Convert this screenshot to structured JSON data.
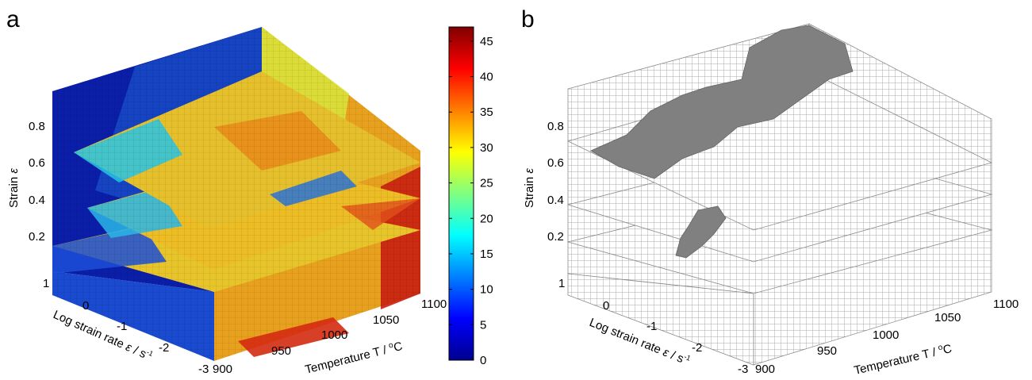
{
  "chart_data": [
    {
      "panel": "a",
      "type": "heatmap",
      "subtype": "3d-slice",
      "x_axis": {
        "label": "Temperature T / °C",
        "ticks": [
          "900",
          "950",
          "1000",
          "1050",
          "1100"
        ],
        "range": [
          900,
          1100
        ]
      },
      "y_axis": {
        "label": "Log strain rate ε / s⁻¹",
        "ticks": [
          "-3",
          "-2",
          "-1",
          "0",
          "1"
        ],
        "range": [
          -3,
          1
        ]
      },
      "z_axis": {
        "label": "Strain ε",
        "ticks": [
          "0.2",
          "0.4",
          "0.6",
          "0.8"
        ]
      },
      "colorbar": {
        "ticks": [
          "0",
          "5",
          "10",
          "15",
          "20",
          "25",
          "30",
          "35",
          "40",
          "45"
        ],
        "range": [
          0,
          47
        ],
        "colormap": "jet"
      },
      "slices_at_strain": [
        0.2,
        0.4,
        0.6
      ],
      "grid": true
    },
    {
      "panel": "b",
      "type": "heatmap",
      "subtype": "3d-slice-instability-map",
      "x_axis": {
        "label": "Temperature T / °C",
        "ticks": [
          "900",
          "950",
          "1000",
          "1050",
          "1100"
        ],
        "range": [
          900,
          1100
        ]
      },
      "y_axis": {
        "label": "Log strain rate ε / s⁻¹",
        "ticks": [
          "-3",
          "-2",
          "-1",
          "0",
          "1"
        ],
        "range": [
          -3,
          1
        ]
      },
      "z_axis": {
        "label": "Strain ε",
        "ticks": [
          "0.2",
          "0.4",
          "0.6",
          "0.8"
        ]
      },
      "colors": {
        "unstable": "#808080",
        "stable": "#ffffff",
        "grid": "#a0a0a0"
      },
      "grid": true
    }
  ],
  "labels": {
    "panel_a": "a",
    "panel_b": "b",
    "strain": "Strain",
    "strain_symbol": "ε",
    "temp_main": "Temperature T / ",
    "temp_sup": "o",
    "temp_unit": "C",
    "rate_main": "Log strain rate ",
    "rate_symbol": "ε",
    "rate_unit": " / s",
    "rate_sup": "-1"
  }
}
